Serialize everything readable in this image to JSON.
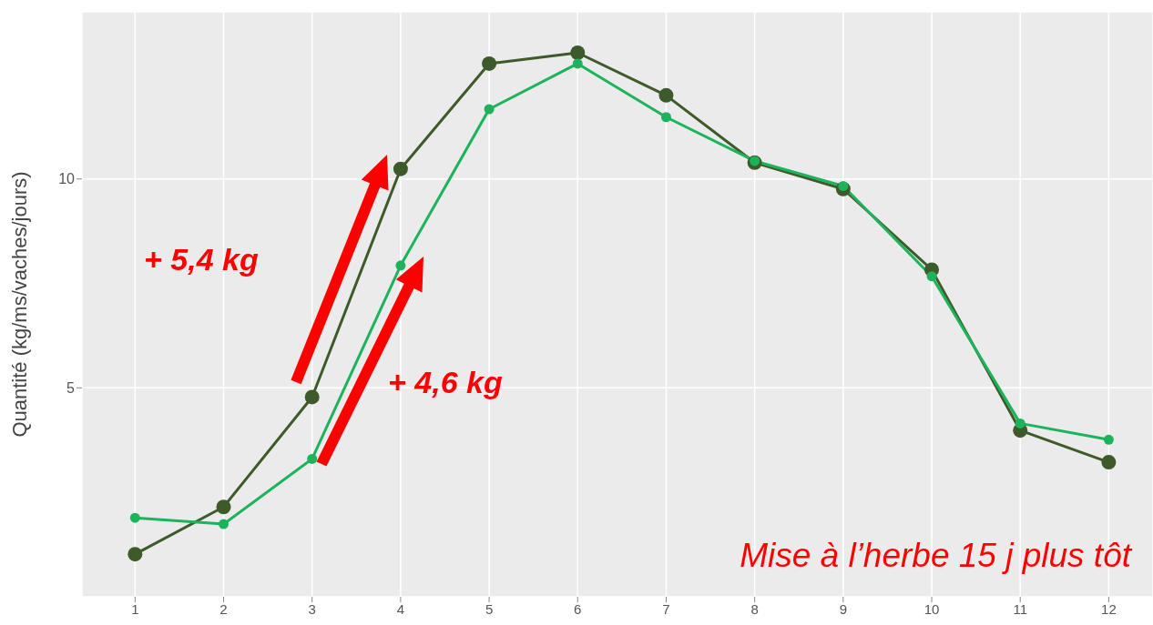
{
  "chart_data": {
    "type": "line",
    "ylabel": "Quantité (kg/ms/vaches/jours)",
    "x": [
      1,
      2,
      3,
      4,
      5,
      6,
      7,
      8,
      9,
      10,
      11,
      12
    ],
    "xlim": [
      0.4,
      12.5
    ],
    "xticks": [
      1,
      2,
      3,
      4,
      5,
      6,
      7,
      8,
      9,
      10,
      11,
      12
    ],
    "ylim": [
      0,
      14
    ],
    "yticks": [
      5,
      10
    ],
    "grid": true,
    "marker": "circle",
    "line_style": "solid",
    "series": [
      {
        "color": "#3e5a2a",
        "values": [
          1.02,
          2.15,
          4.78,
          10.24,
          12.76,
          13.02,
          12.0,
          10.39,
          9.76,
          7.83,
          3.98,
          3.22
        ]
      },
      {
        "color": "#1db35c",
        "values": [
          1.89,
          1.74,
          3.3,
          7.93,
          11.67,
          12.76,
          11.48,
          10.43,
          9.83,
          7.67,
          4.15,
          3.76
        ]
      }
    ],
    "annotations": [
      "+ 5,4 kg",
      "+ 4,6 kg",
      "Mise à l’herbe 15 j plus tôt"
    ]
  }
}
